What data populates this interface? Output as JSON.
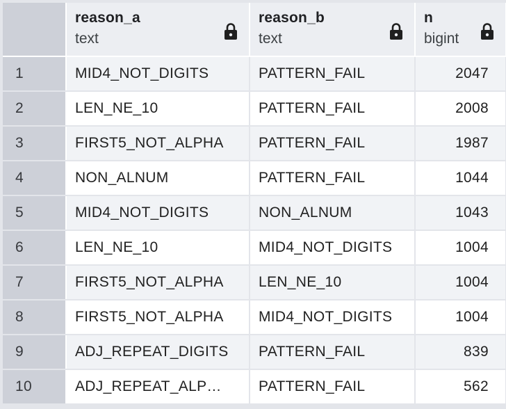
{
  "columns": [
    {
      "name": "reason_a",
      "type": "text"
    },
    {
      "name": "reason_b",
      "type": "text"
    },
    {
      "name": "n",
      "type": "bigint"
    }
  ],
  "rows": [
    {
      "index": "1",
      "reason_a": "MID4_NOT_DIGITS",
      "reason_b": "PATTERN_FAIL",
      "n": "2047"
    },
    {
      "index": "2",
      "reason_a": "LEN_NE_10",
      "reason_b": "PATTERN_FAIL",
      "n": "2008"
    },
    {
      "index": "3",
      "reason_a": "FIRST5_NOT_ALPHA",
      "reason_b": "PATTERN_FAIL",
      "n": "1987"
    },
    {
      "index": "4",
      "reason_a": "NON_ALNUM",
      "reason_b": "PATTERN_FAIL",
      "n": "1044"
    },
    {
      "index": "5",
      "reason_a": "MID4_NOT_DIGITS",
      "reason_b": "NON_ALNUM",
      "n": "1043"
    },
    {
      "index": "6",
      "reason_a": "LEN_NE_10",
      "reason_b": "MID4_NOT_DIGITS",
      "n": "1004"
    },
    {
      "index": "7",
      "reason_a": "FIRST5_NOT_ALPHA",
      "reason_b": "LEN_NE_10",
      "n": "1004"
    },
    {
      "index": "8",
      "reason_a": "FIRST5_NOT_ALPHA",
      "reason_b": "MID4_NOT_DIGITS",
      "n": "1004"
    },
    {
      "index": "9",
      "reason_a": "ADJ_REPEAT_DIGITS",
      "reason_b": "PATTERN_FAIL",
      "n": "839"
    },
    {
      "index": "10",
      "reason_a": "ADJ_REPEAT_ALP…",
      "reason_b": "PATTERN_FAIL",
      "n": "562"
    }
  ],
  "icons": {
    "column_lock": "lock-icon"
  },
  "colors": {
    "header_bg": "#eceef2",
    "index_bg": "#cdd0d8",
    "row_alt_bg": "#f1f3f6",
    "row_bg": "#ffffff",
    "grid_line": "#e3e5ea",
    "lock_color": "#1f1f1f"
  }
}
